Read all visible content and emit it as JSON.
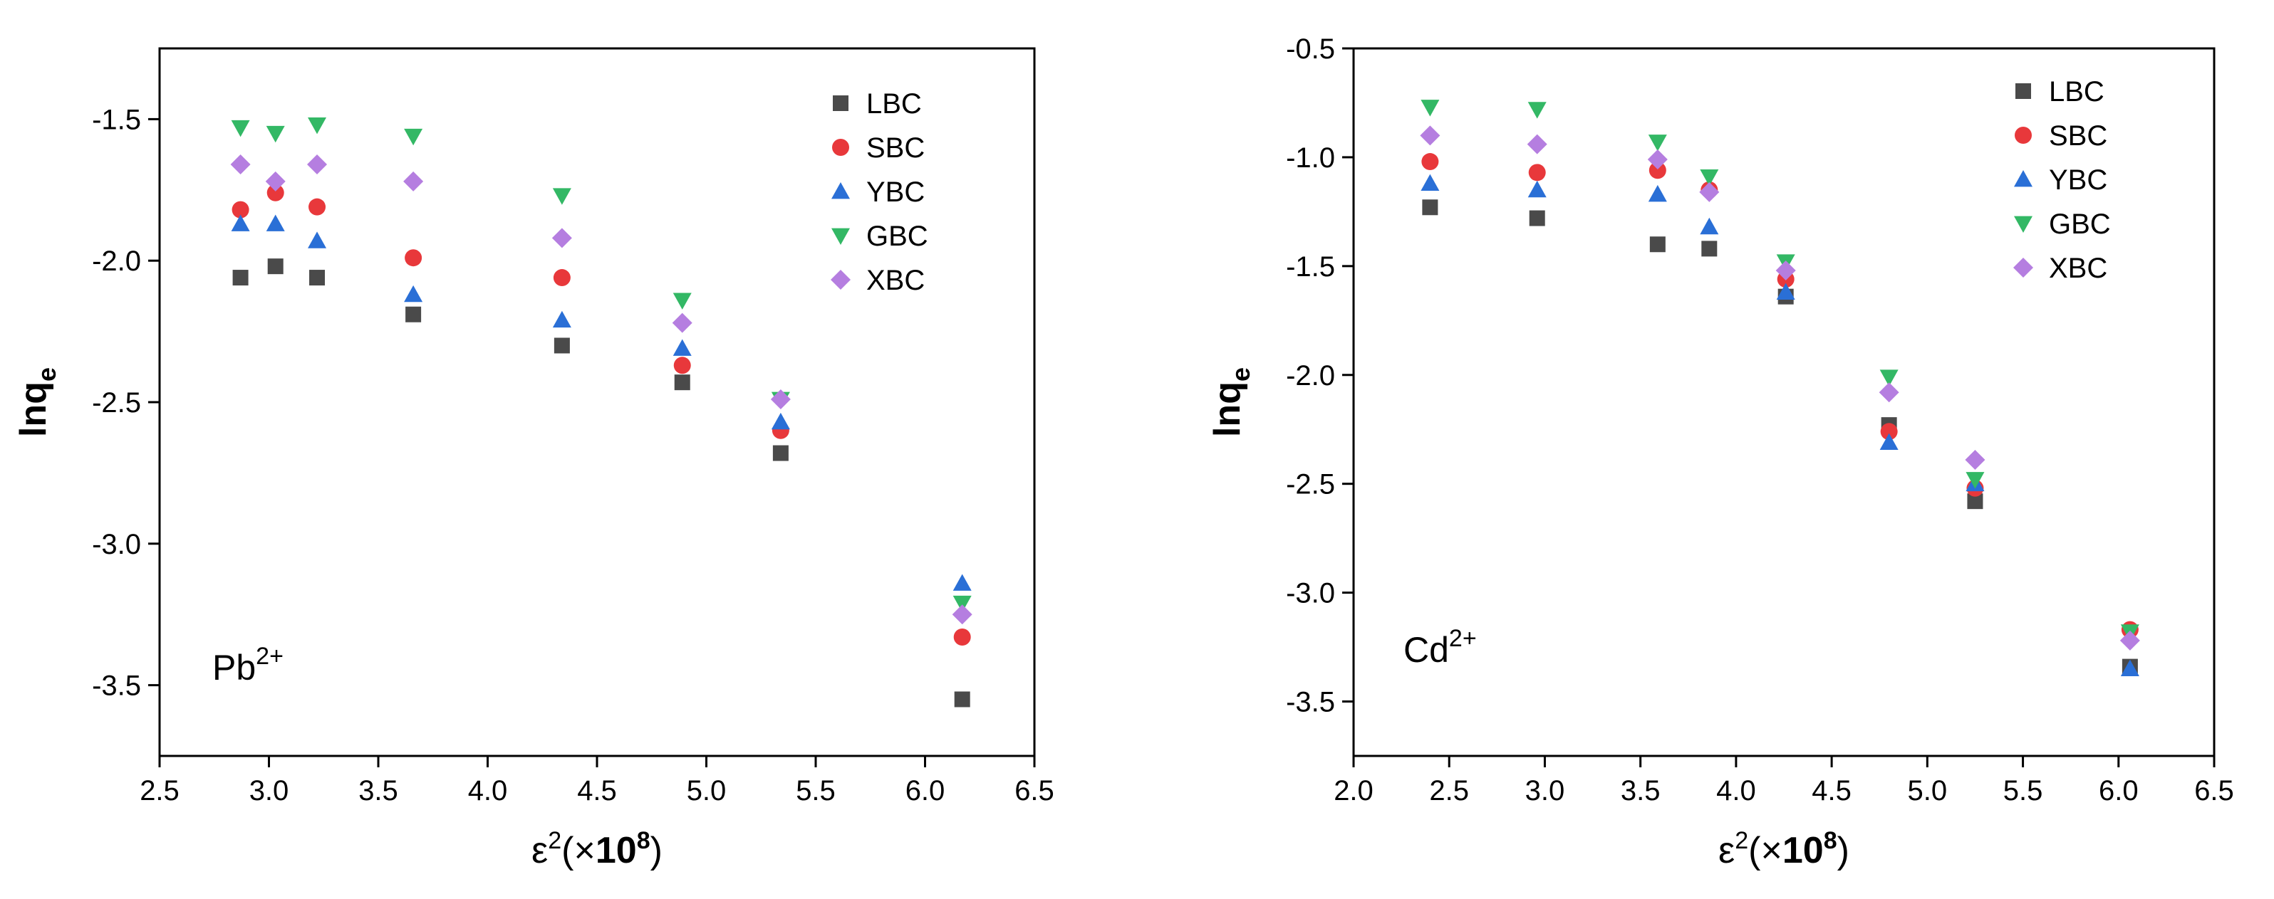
{
  "colors": {
    "LBC": "#4a4a4a",
    "SBC": "#e8383b",
    "YBC": "#2a6fd6",
    "GBC": "#33b865",
    "XBC": "#b57ee0"
  },
  "markers": {
    "LBC": "square",
    "SBC": "circle",
    "YBC": "triangle-up",
    "GBC": "triangle-down",
    "XBC": "diamond"
  },
  "chart_data": [
    {
      "type": "scatter",
      "annotation": {
        "base": "Pb",
        "sup": "2+"
      },
      "ylabel": {
        "text": "lnq",
        "sub": "e"
      },
      "xlabel": {
        "pre": "ε",
        "sup": "2",
        "mid": "(×",
        "bold": "10",
        "boldsup": "8",
        "post": ")"
      },
      "xlim": [
        2.5,
        6.5
      ],
      "ylim": [
        -3.75,
        -1.25
      ],
      "xticks": [
        "2.5",
        "3.0",
        "3.5",
        "4.0",
        "4.5",
        "5.0",
        "5.5",
        "6.0",
        "6.5"
      ],
      "yticks": [
        "-1.5",
        "-2.0",
        "-2.5",
        "-3.0",
        "-3.5"
      ],
      "legend_position": "top-right",
      "x": [
        2.87,
        3.03,
        3.22,
        3.66,
        4.34,
        4.89,
        5.34,
        6.17
      ],
      "series": [
        {
          "name": "LBC",
          "values": [
            -2.06,
            -2.02,
            -2.06,
            -2.19,
            -2.3,
            -2.43,
            -2.68,
            -3.55
          ]
        },
        {
          "name": "SBC",
          "values": [
            -1.82,
            -1.76,
            -1.81,
            -1.99,
            -2.06,
            -2.37,
            -2.6,
            -3.33
          ]
        },
        {
          "name": "YBC",
          "values": [
            -1.87,
            -1.87,
            -1.93,
            -2.12,
            -2.21,
            -2.31,
            -2.57,
            -3.14
          ]
        },
        {
          "name": "GBC",
          "values": [
            -1.53,
            -1.55,
            -1.52,
            -1.56,
            -1.77,
            -2.14,
            -2.49,
            -3.21
          ]
        },
        {
          "name": "XBC",
          "values": [
            -1.66,
            -1.72,
            -1.66,
            -1.72,
            -1.92,
            -2.22,
            -2.49,
            -3.25
          ]
        }
      ]
    },
    {
      "type": "scatter",
      "annotation": {
        "base": "Cd",
        "sup": "2+"
      },
      "ylabel": {
        "text": "lnq",
        "sub": "e"
      },
      "xlabel": {
        "pre": "ε",
        "sup": "2",
        "mid": "(×",
        "bold": "10",
        "boldsup": "8",
        "post": ")"
      },
      "xlim": [
        2.0,
        6.5
      ],
      "ylim": [
        -3.75,
        -0.5
      ],
      "xticks": [
        "2.0",
        "2.5",
        "3.0",
        "3.5",
        "4.0",
        "4.5",
        "5.0",
        "5.5",
        "6.0",
        "6.5"
      ],
      "yticks": [
        "-0.5",
        "-1.0",
        "-1.5",
        "-2.0",
        "-2.5",
        "-3.0",
        "-3.5"
      ],
      "legend_position": "top-right",
      "x": [
        2.4,
        2.96,
        3.59,
        3.86,
        4.26,
        4.8,
        5.25,
        6.06
      ],
      "series": [
        {
          "name": "LBC",
          "values": [
            -1.23,
            -1.28,
            -1.4,
            -1.42,
            -1.64,
            -2.23,
            -2.58,
            -3.34
          ]
        },
        {
          "name": "SBC",
          "values": [
            -1.02,
            -1.07,
            -1.06,
            -1.15,
            -1.56,
            -2.26,
            -2.52,
            -3.17
          ]
        },
        {
          "name": "YBC",
          "values": [
            -1.12,
            -1.15,
            -1.17,
            -1.32,
            -1.62,
            -2.31,
            -2.5,
            -3.35
          ]
        },
        {
          "name": "GBC",
          "values": [
            -0.77,
            -0.78,
            -0.93,
            -1.09,
            -1.48,
            -2.01,
            -2.48,
            -3.18
          ]
        },
        {
          "name": "XBC",
          "values": [
            -0.9,
            -0.94,
            -1.01,
            -1.16,
            -1.52,
            -2.08,
            -2.39,
            -3.22
          ]
        }
      ]
    }
  ]
}
